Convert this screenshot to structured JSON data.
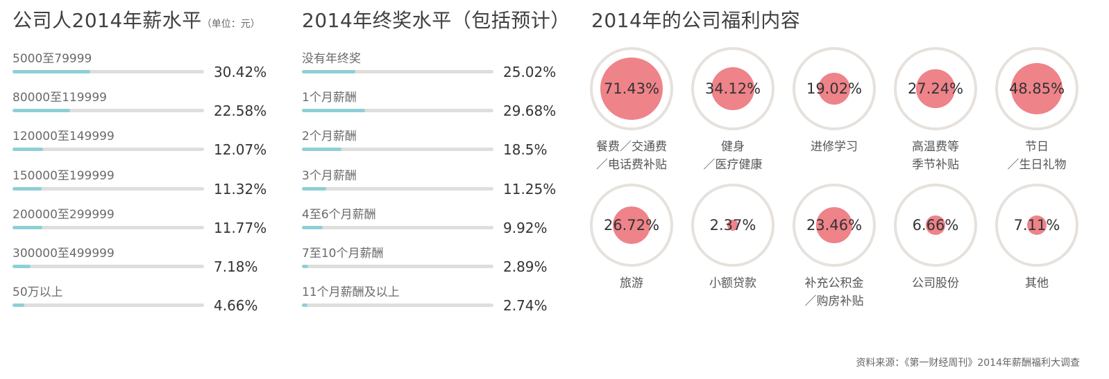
{
  "salary": {
    "title": "公司人2014年薪水平",
    "unit": "（单位：元）",
    "chart_data": {
      "type": "bar",
      "title": "公司人2014年薪水平",
      "categories": [
        "5000至79999",
        "80000至119999",
        "120000至149999",
        "150000至199999",
        "200000至299999",
        "300000至499999",
        "50万以上"
      ],
      "values": [
        30.42,
        22.58,
        12.07,
        11.32,
        11.77,
        7.18,
        4.66
      ],
      "value_labels": [
        "30.42%",
        "22.58%",
        "12.07%",
        "11.32%",
        "11.77%",
        "7.18%",
        "4.66%"
      ],
      "xlim": [
        0,
        75
      ]
    }
  },
  "bonus": {
    "title": "2014年终奖水平（包括预计）",
    "chart_data": {
      "type": "bar",
      "title": "2014年终奖水平（包括预计）",
      "categories": [
        "没有年终奖",
        "1个月薪酬",
        "2个月薪酬",
        "3个月薪酬",
        "4至6个月薪酬",
        "7至10个月薪酬",
        "11个月薪酬及以上"
      ],
      "values": [
        25.02,
        29.68,
        18.5,
        11.25,
        9.92,
        2.89,
        2.74
      ],
      "value_labels": [
        "25.02%",
        "29.68%",
        "18.5%",
        "11.25%",
        "9.92%",
        "2.89%",
        "2.74%"
      ],
      "xlim": [
        0,
        90
      ]
    }
  },
  "benefits": {
    "title": "2014年的公司福利内容",
    "chart_data": {
      "type": "bubble",
      "title": "2014年的公司福利内容",
      "categories": [
        [
          "餐费／交通费",
          "／电话费补贴"
        ],
        [
          "健身",
          "／医疗健康"
        ],
        [
          "进修学习"
        ],
        [
          "高温费等",
          "季节补贴"
        ],
        [
          "节日",
          "／生日礼物"
        ],
        [
          "旅游"
        ],
        [
          "小额贷款"
        ],
        [
          "补充公积金",
          "／购房补贴"
        ],
        [
          "公司股份"
        ],
        [
          "其他"
        ]
      ],
      "values": [
        71.43,
        34.12,
        19.02,
        27.24,
        48.85,
        26.72,
        2.37,
        23.46,
        6.66,
        7.11
      ],
      "value_labels": [
        "71.43%",
        "34.12%",
        "19.02%",
        "27.24%",
        "48.85%",
        "26.72%",
        "2.37%",
        "23.46%",
        "6.66%",
        "7.11%"
      ],
      "max_value": 100
    }
  },
  "source": "资料来源：《第一财经周刊》2014年薪酬福利大调查",
  "colors": {
    "bar_fill": "#8ecfd8",
    "bar_track": "#dededc",
    "bubble": "#ee8389",
    "ring": "#e6e1dc"
  }
}
